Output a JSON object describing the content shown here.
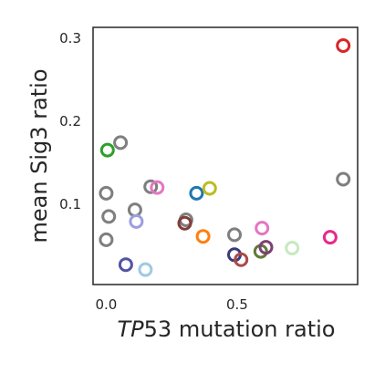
{
  "chart_data": {
    "type": "scatter",
    "title": "",
    "xlabel_italic": "TP",
    "xlabel_rest": "53 mutation ratio",
    "ylabel": "mean Sig3 ratio",
    "xlim": [
      -0.05,
      0.96
    ],
    "ylim": [
      0.003,
      0.313
    ],
    "xticks": [
      {
        "value": 0.0,
        "label": "0.0"
      },
      {
        "value": 0.5,
        "label": "0.5"
      }
    ],
    "yticks": [
      {
        "value": 0.1,
        "label": "0.1"
      },
      {
        "value": 0.2,
        "label": "0.2"
      },
      {
        "value": 0.3,
        "label": "0.3"
      }
    ],
    "grid": false,
    "legend": "none",
    "marker": "open-circle",
    "points": [
      {
        "x": 0.905,
        "y": 0.291,
        "color": "#d62728"
      },
      {
        "x": 0.905,
        "y": 0.13,
        "color": "#7f7f7f"
      },
      {
        "x": 0.005,
        "y": 0.165,
        "color": "#2ca02c"
      },
      {
        "x": 0.055,
        "y": 0.174,
        "color": "#7f7f7f"
      },
      {
        "x": 0.0,
        "y": 0.113,
        "color": "#7f7f7f"
      },
      {
        "x": 0.01,
        "y": 0.085,
        "color": "#7f7f7f"
      },
      {
        "x": 0.0,
        "y": 0.057,
        "color": "#7f7f7f"
      },
      {
        "x": 0.11,
        "y": 0.093,
        "color": "#7f7f7f"
      },
      {
        "x": 0.115,
        "y": 0.079,
        "color": "#9c9ede"
      },
      {
        "x": 0.17,
        "y": 0.121,
        "color": "#7f7f7f"
      },
      {
        "x": 0.195,
        "y": 0.12,
        "color": "#e377c2"
      },
      {
        "x": 0.075,
        "y": 0.027,
        "color": "#5254a3"
      },
      {
        "x": 0.15,
        "y": 0.021,
        "color": "#9ecae1"
      },
      {
        "x": 0.305,
        "y": 0.081,
        "color": "#7f7f7f"
      },
      {
        "x": 0.3,
        "y": 0.077,
        "color": "#843c39"
      },
      {
        "x": 0.345,
        "y": 0.113,
        "color": "#1f77b4"
      },
      {
        "x": 0.395,
        "y": 0.119,
        "color": "#bcbd22"
      },
      {
        "x": 0.37,
        "y": 0.061,
        "color": "#ff7f0e"
      },
      {
        "x": 0.49,
        "y": 0.063,
        "color": "#7f7f7f"
      },
      {
        "x": 0.49,
        "y": 0.039,
        "color": "#393b79"
      },
      {
        "x": 0.515,
        "y": 0.033,
        "color": "#ad494a"
      },
      {
        "x": 0.595,
        "y": 0.071,
        "color": "#e377c2"
      },
      {
        "x": 0.59,
        "y": 0.043,
        "color": "#637939"
      },
      {
        "x": 0.61,
        "y": 0.048,
        "color": "#7b4173"
      },
      {
        "x": 0.71,
        "y": 0.047,
        "color": "#c7e9c0"
      },
      {
        "x": 0.855,
        "y": 0.06,
        "color": "#e7298a"
      }
    ]
  }
}
